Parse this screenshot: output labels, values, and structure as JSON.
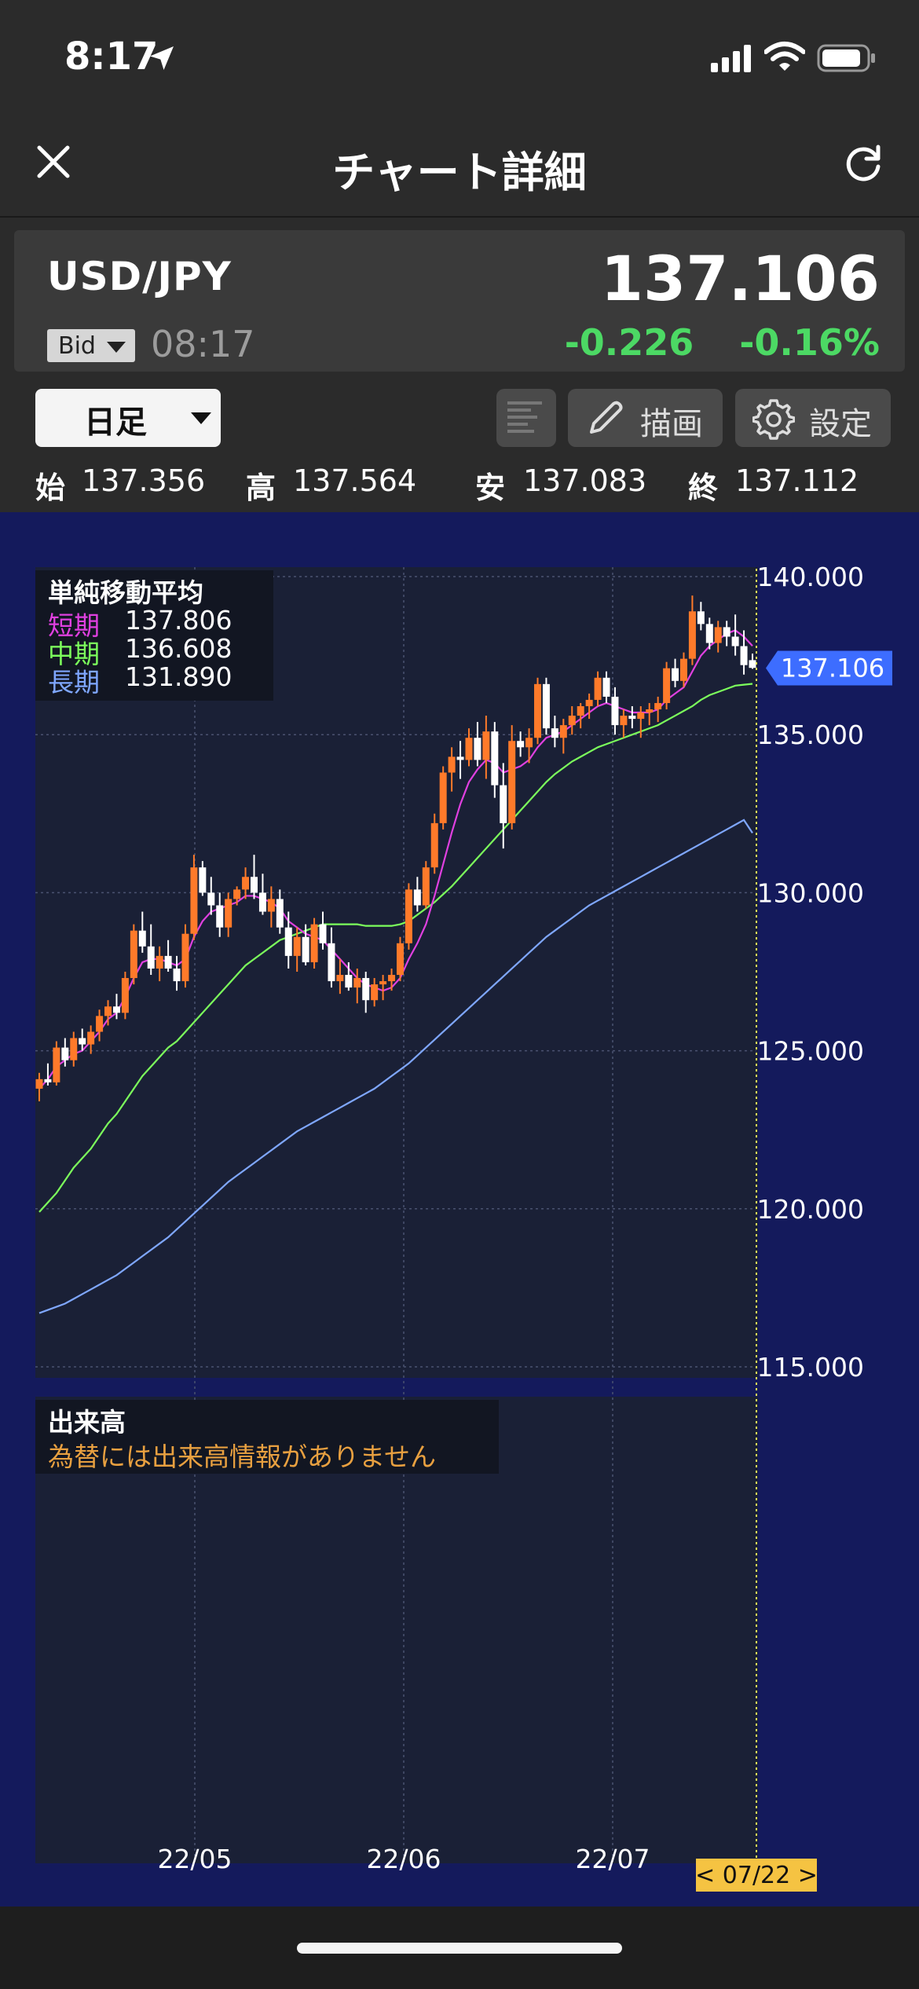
{
  "status_bar": {
    "time": "8:17"
  },
  "header": {
    "title": "チャート詳細"
  },
  "quote": {
    "pair": "USD/JPY",
    "price": "137.106",
    "bid_label": "Bid",
    "time": "08:17",
    "change": "-0.226",
    "change_pct": "-0.16%"
  },
  "toolbar": {
    "period": "日足",
    "draw_label": "描画",
    "settings_label": "設定"
  },
  "ohlc": {
    "open_label": "始",
    "open": "137.356",
    "high_label": "高",
    "high": "137.564",
    "low_label": "安",
    "low": "137.083",
    "close_label": "終",
    "close": "137.112"
  },
  "chart_data": {
    "type": "candlestick",
    "indicator_title": "単純移動平均",
    "legend": [
      {
        "name": "短期",
        "value": "137.806",
        "color": "#e040e0"
      },
      {
        "name": "中期",
        "value": "136.608",
        "color": "#7cff5c"
      },
      {
        "name": "長期",
        "value": "131.890",
        "color": "#7fa7ff"
      }
    ],
    "y_ticks": [
      "140.000",
      "135.000",
      "130.000",
      "125.000",
      "120.000",
      "115.000"
    ],
    "y_range": [
      115,
      140
    ],
    "x_ticks": [
      "22/05",
      "22/06",
      "22/07"
    ],
    "current_price_label": "137.106",
    "current_price": 137.106,
    "cursor_label": "< 07/22 >",
    "up_color": "#ff7a2a",
    "down_color": "#ffffff",
    "candles": [
      [
        123.8,
        124.3,
        123.4,
        124.1
      ],
      [
        124.1,
        124.6,
        123.9,
        124.0
      ],
      [
        124.0,
        125.3,
        123.9,
        125.1
      ],
      [
        125.1,
        125.4,
        124.5,
        124.7
      ],
      [
        124.7,
        125.6,
        124.5,
        125.4
      ],
      [
        125.4,
        125.7,
        125.0,
        125.2
      ],
      [
        125.2,
        125.8,
        124.9,
        125.6
      ],
      [
        125.6,
        126.3,
        125.3,
        126.1
      ],
      [
        126.1,
        126.6,
        125.8,
        126.4
      ],
      [
        126.4,
        126.8,
        126.0,
        126.2
      ],
      [
        126.2,
        127.5,
        126.0,
        127.3
      ],
      [
        127.3,
        129.0,
        127.1,
        128.8
      ],
      [
        128.8,
        129.4,
        128.1,
        128.3
      ],
      [
        128.3,
        129.0,
        127.4,
        127.6
      ],
      [
        127.6,
        128.3,
        127.2,
        128.0
      ],
      [
        128.0,
        128.5,
        127.5,
        127.6
      ],
      [
        127.6,
        128.0,
        126.9,
        127.2
      ],
      [
        127.2,
        129.0,
        127.0,
        128.7
      ],
      [
        128.7,
        131.2,
        128.5,
        130.8
      ],
      [
        130.8,
        131.0,
        129.9,
        130.0
      ],
      [
        130.0,
        130.5,
        129.3,
        129.6
      ],
      [
        129.6,
        130.0,
        128.6,
        128.9
      ],
      [
        128.9,
        130.0,
        128.6,
        129.8
      ],
      [
        129.8,
        130.2,
        129.6,
        130.1
      ],
      [
        130.1,
        130.8,
        129.8,
        130.5
      ],
      [
        130.5,
        131.2,
        129.8,
        130.0
      ],
      [
        130.0,
        130.6,
        129.3,
        129.4
      ],
      [
        129.4,
        130.2,
        128.9,
        129.8
      ],
      [
        129.8,
        130.1,
        128.7,
        128.9
      ],
      [
        128.9,
        129.4,
        127.6,
        128.0
      ],
      [
        128.0,
        128.9,
        127.5,
        128.6
      ],
      [
        128.6,
        129.0,
        127.7,
        127.8
      ],
      [
        127.8,
        129.2,
        127.6,
        129.0
      ],
      [
        129.0,
        129.4,
        128.2,
        128.4
      ],
      [
        128.4,
        128.9,
        127.0,
        127.2
      ],
      [
        127.2,
        127.9,
        126.8,
        127.4
      ],
      [
        127.4,
        127.8,
        126.9,
        127.0
      ],
      [
        127.0,
        127.6,
        126.5,
        127.3
      ],
      [
        127.3,
        127.5,
        126.2,
        126.6
      ],
      [
        126.6,
        127.3,
        126.4,
        127.1
      ],
      [
        127.1,
        127.4,
        126.6,
        127.2
      ],
      [
        127.2,
        127.6,
        126.9,
        127.4
      ],
      [
        127.4,
        128.6,
        127.2,
        128.4
      ],
      [
        128.4,
        130.3,
        128.2,
        130.1
      ],
      [
        130.1,
        130.5,
        129.4,
        129.6
      ],
      [
        129.6,
        131.0,
        129.5,
        130.8
      ],
      [
        130.8,
        132.5,
        130.6,
        132.2
      ],
      [
        132.2,
        134.0,
        132.0,
        133.8
      ],
      [
        133.8,
        134.6,
        133.2,
        134.3
      ],
      [
        134.3,
        134.8,
        133.6,
        134.2
      ],
      [
        134.2,
        135.2,
        134.0,
        134.9
      ],
      [
        134.9,
        135.4,
        134.0,
        134.2
      ],
      [
        134.2,
        135.6,
        133.6,
        135.1
      ],
      [
        135.1,
        135.4,
        133.0,
        133.4
      ],
      [
        133.4,
        134.1,
        131.4,
        132.2
      ],
      [
        132.2,
        135.3,
        132.0,
        134.8
      ],
      [
        134.8,
        135.1,
        134.3,
        134.6
      ],
      [
        134.6,
        135.2,
        134.1,
        134.9
      ],
      [
        134.9,
        136.8,
        134.7,
        136.6
      ],
      [
        136.6,
        136.8,
        135.0,
        135.2
      ],
      [
        135.2,
        135.6,
        134.6,
        134.9
      ],
      [
        134.9,
        135.5,
        134.4,
        135.3
      ],
      [
        135.3,
        135.9,
        135.0,
        135.6
      ],
      [
        135.6,
        136.0,
        135.2,
        135.9
      ],
      [
        135.9,
        136.3,
        135.5,
        136.1
      ],
      [
        136.1,
        137.0,
        135.9,
        136.8
      ],
      [
        136.8,
        137.0,
        136.0,
        136.2
      ],
      [
        136.2,
        136.5,
        135.0,
        135.3
      ],
      [
        135.3,
        135.8,
        134.9,
        135.6
      ],
      [
        135.6,
        135.9,
        135.2,
        135.5
      ],
      [
        135.5,
        135.9,
        134.9,
        135.7
      ],
      [
        135.7,
        136.0,
        135.3,
        135.8
      ],
      [
        135.8,
        136.2,
        135.4,
        136.0
      ],
      [
        136.0,
        137.3,
        135.8,
        137.1
      ],
      [
        137.1,
        137.4,
        136.5,
        136.7
      ],
      [
        136.7,
        137.6,
        136.5,
        137.4
      ],
      [
        137.4,
        139.4,
        137.2,
        138.9
      ],
      [
        138.9,
        139.2,
        138.3,
        138.5
      ],
      [
        138.5,
        138.7,
        137.7,
        137.9
      ],
      [
        137.9,
        138.6,
        137.6,
        138.4
      ],
      [
        138.4,
        138.6,
        137.8,
        138.1
      ],
      [
        138.1,
        138.8,
        137.5,
        137.8
      ],
      [
        137.8,
        138.3,
        136.9,
        137.2
      ],
      [
        137.356,
        137.564,
        137.083,
        137.112
      ]
    ],
    "sma_short": [
      123.8,
      124.1,
      124.5,
      124.7,
      124.9,
      125.0,
      125.3,
      125.6,
      126.0,
      126.2,
      126.7,
      127.3,
      127.8,
      127.9,
      127.9,
      127.8,
      127.7,
      127.9,
      128.6,
      129.1,
      129.4,
      129.5,
      129.6,
      129.7,
      129.9,
      129.9,
      129.8,
      129.7,
      129.5,
      129.1,
      128.9,
      128.7,
      128.6,
      128.5,
      128.2,
      127.9,
      127.6,
      127.3,
      127.1,
      127.0,
      126.9,
      127.0,
      127.3,
      127.9,
      128.4,
      129.0,
      129.9,
      130.9,
      131.9,
      132.8,
      133.5,
      133.9,
      134.2,
      134.1,
      133.8,
      133.9,
      134.0,
      134.2,
      134.6,
      134.9,
      135.0,
      135.1,
      135.3,
      135.5,
      135.7,
      135.9,
      136.0,
      135.9,
      135.8,
      135.7,
      135.7,
      135.7,
      135.8,
      136.1,
      136.3,
      136.5,
      137.0,
      137.5,
      137.8,
      138.0,
      138.2,
      138.3,
      138.1,
      137.806
    ],
    "sma_mid": [
      119.9,
      120.2,
      120.5,
      120.9,
      121.3,
      121.6,
      121.9,
      122.3,
      122.7,
      123.0,
      123.4,
      123.8,
      124.2,
      124.5,
      124.8,
      125.1,
      125.3,
      125.6,
      125.9,
      126.2,
      126.5,
      126.8,
      127.1,
      127.4,
      127.7,
      127.9,
      128.1,
      128.3,
      128.5,
      128.6,
      128.7,
      128.8,
      128.9,
      129.0,
      129.0,
      129.0,
      129.0,
      129.0,
      128.95,
      128.95,
      128.95,
      128.95,
      129.0,
      129.1,
      129.3,
      129.5,
      129.7,
      129.95,
      130.2,
      130.5,
      130.8,
      131.1,
      131.4,
      131.7,
      132.0,
      132.3,
      132.6,
      132.9,
      133.2,
      133.5,
      133.75,
      133.95,
      134.15,
      134.3,
      134.45,
      134.6,
      134.7,
      134.8,
      134.9,
      135.0,
      135.1,
      135.2,
      135.3,
      135.45,
      135.6,
      135.75,
      135.9,
      136.1,
      136.25,
      136.35,
      136.45,
      136.55,
      136.58,
      136.608
    ],
    "sma_long": [
      116.7,
      116.8,
      116.9,
      117.0,
      117.15,
      117.3,
      117.45,
      117.6,
      117.75,
      117.9,
      118.1,
      118.3,
      118.5,
      118.7,
      118.9,
      119.1,
      119.35,
      119.6,
      119.85,
      120.1,
      120.35,
      120.6,
      120.85,
      121.05,
      121.25,
      121.45,
      121.65,
      121.85,
      122.05,
      122.25,
      122.45,
      122.6,
      122.75,
      122.9,
      123.05,
      123.2,
      123.35,
      123.5,
      123.65,
      123.8,
      124.0,
      124.2,
      124.4,
      124.6,
      124.85,
      125.1,
      125.35,
      125.6,
      125.85,
      126.1,
      126.35,
      126.6,
      126.85,
      127.1,
      127.35,
      127.6,
      127.85,
      128.1,
      128.35,
      128.6,
      128.8,
      129.0,
      129.2,
      129.4,
      129.6,
      129.75,
      129.9,
      130.05,
      130.2,
      130.35,
      130.5,
      130.65,
      130.8,
      130.95,
      131.1,
      131.25,
      131.4,
      131.55,
      131.7,
      131.85,
      132.0,
      132.15,
      132.3,
      131.89
    ],
    "volume_title": "出来高",
    "volume_note": "為替には出来高情報がありません"
  }
}
